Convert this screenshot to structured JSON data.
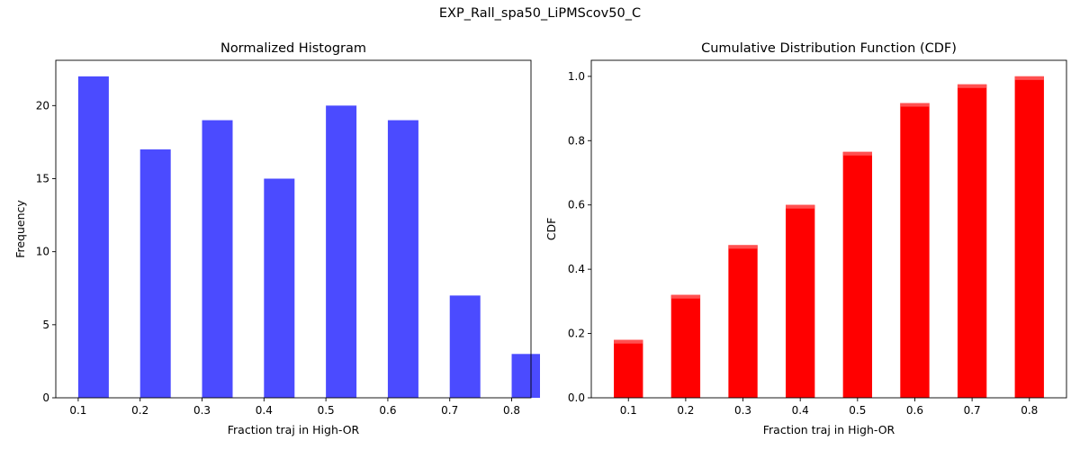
{
  "suptitle": "EXP_Rall_spa50_LiPMScov50_C",
  "chart_data": [
    {
      "type": "bar",
      "title": "Normalized Histogram",
      "xlabel": "Fraction traj in High-OR",
      "ylabel": "Frequency",
      "color": "#4b4bff",
      "categories": [
        0.1,
        0.2,
        0.3,
        0.4,
        0.5,
        0.6,
        0.7,
        0.8
      ],
      "values": [
        22,
        17,
        19,
        15,
        20,
        19,
        7,
        3
      ],
      "xticks": [
        "0.1",
        "0.2",
        "0.3",
        "0.4",
        "0.5",
        "0.6",
        "0.7",
        "0.8"
      ],
      "yticks": [
        0,
        5,
        10,
        15,
        20
      ],
      "ylim": [
        0,
        23.1
      ],
      "grid": false
    },
    {
      "type": "bar",
      "title": "Cumulative Distribution Function (CDF)",
      "xlabel": "Fraction traj in High-OR",
      "ylabel": "CDF",
      "color": "#ff0000",
      "categories": [
        0.1,
        0.2,
        0.3,
        0.4,
        0.5,
        0.6,
        0.7,
        0.8
      ],
      "values": [
        0.18,
        0.32,
        0.475,
        0.6,
        0.765,
        0.917,
        0.975,
        1.0
      ],
      "xticks": [
        "0.1",
        "0.2",
        "0.3",
        "0.4",
        "0.5",
        "0.6",
        "0.7",
        "0.8"
      ],
      "yticks": [
        "0.0",
        "0.2",
        "0.4",
        "0.6",
        "0.8",
        "1.0"
      ],
      "ylim": [
        0,
        1.05
      ],
      "grid": false
    }
  ]
}
